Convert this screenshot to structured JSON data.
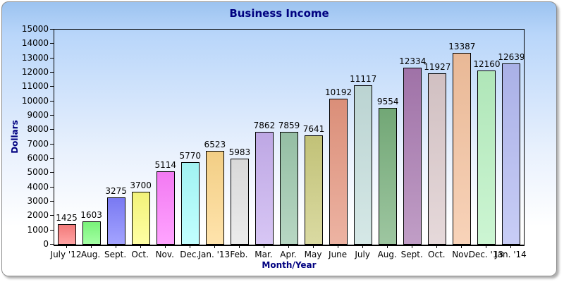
{
  "chart_data": {
    "type": "bar",
    "title": "Business Income",
    "title_color": "#000080",
    "xlabel": "Month/Year",
    "ylabel": "Dollars",
    "axis_title_color": "#000080",
    "ylim": [
      0,
      15000
    ],
    "ytick_step": 1000,
    "grid": false,
    "legend": "none",
    "value_labels_shown": true,
    "categories": [
      "July '12",
      "Aug.",
      "Sept.",
      "Oct.",
      "Nov.",
      "Dec.",
      "Jan. '13",
      "Feb.",
      "Mar.",
      "Apr.",
      "May",
      "June",
      "July",
      "Aug.",
      "Sept.",
      "Oct.",
      "Nov.",
      "Dec. '13",
      "Jan. '14"
    ],
    "values": [
      1425,
      1603,
      3275,
      3700,
      5114,
      5770,
      6523,
      5983,
      7862,
      7859,
      7641,
      10192,
      11117,
      9554,
      12334,
      11927,
      13387,
      12160,
      12639
    ],
    "bar_colors": [
      "#ff8080",
      "#80ff80",
      "#8080ff",
      "#ffff80",
      "#ff80ff",
      "#aaffff",
      "#ffd98c",
      "#e4e4e4",
      "#c8b0f0",
      "#9cc8ac",
      "#cccc7e",
      "#e6967f",
      "#c5dfdd",
      "#78b07c",
      "#a878b0",
      "#dccacc",
      "#f5c29e",
      "#b9f2c2",
      "#b3baf3"
    ],
    "bar_border_color": "#000000"
  },
  "card": {
    "background_top": "#9cc3f0",
    "background_bottom": "#ffffff",
    "border_color": "#8f8f8f"
  }
}
